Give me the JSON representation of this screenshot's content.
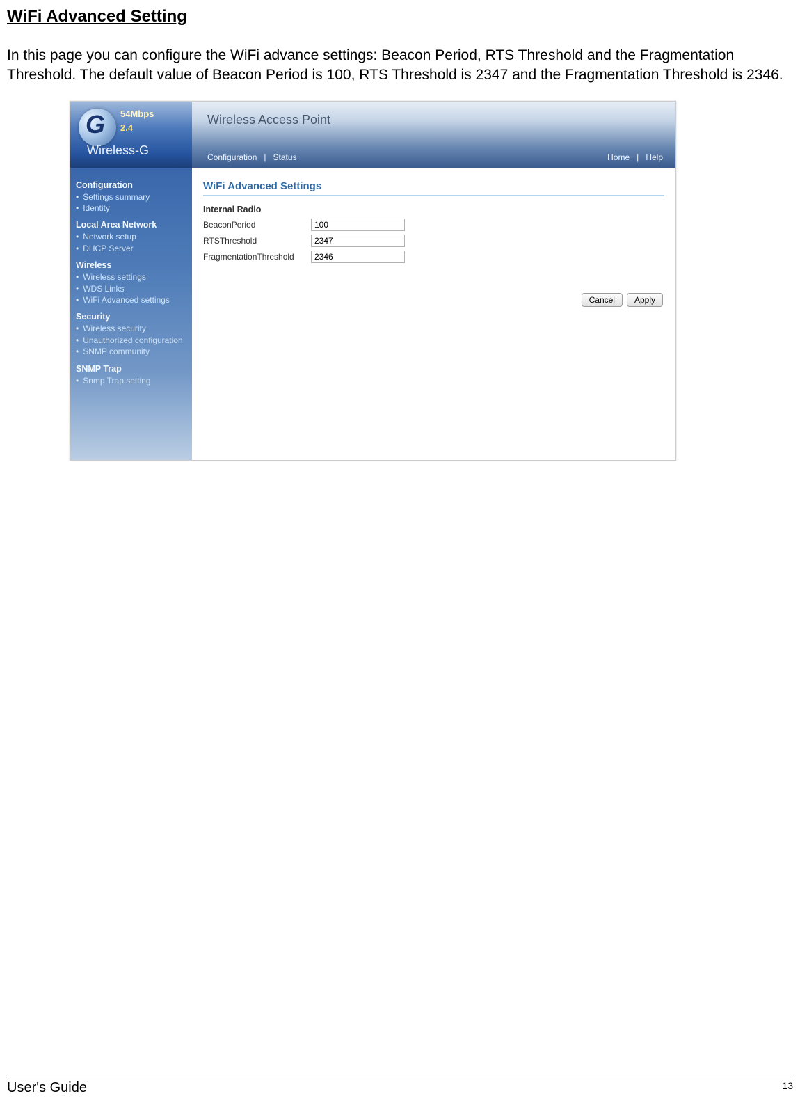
{
  "doc": {
    "section_title": "WiFi Advanced Setting",
    "intro": "In this page you can configure the WiFi advance settings: Beacon Period, RTS Threshold and the Fragmentation Threshold. The default value of Beacon Period is 100, RTS Threshold is 2347 and the Fragmentation Threshold is 2346.",
    "footer_left": "User's Guide",
    "footer_page": "13"
  },
  "logo": {
    "glyph": "G",
    "rate": "54Mbps",
    "band": "2.4",
    "name": "Wireless-G"
  },
  "banner": {
    "title": "Wireless Access Point",
    "nav_config": "Configuration",
    "nav_sep": "|",
    "nav_status": "Status",
    "nav_home": "Home",
    "nav_help": "Help"
  },
  "sidebar": {
    "groups": [
      {
        "title": "Configuration",
        "items": [
          "Settings summary",
          "Identity"
        ]
      },
      {
        "title": "Local Area Network",
        "items": [
          "Network setup",
          "DHCP Server"
        ]
      },
      {
        "title": "Wireless",
        "items": [
          "Wireless settings",
          "WDS Links",
          "WiFi Advanced settings"
        ]
      },
      {
        "title": "Security",
        "items": [
          "Wireless security",
          "Unauthorized configuration",
          "SNMP community"
        ]
      },
      {
        "title": "SNMP Trap",
        "items": [
          "Snmp Trap setting"
        ]
      }
    ]
  },
  "content": {
    "title": "WiFi Advanced Settings",
    "subhead": "Internal Radio",
    "fields": {
      "beacon_label": "BeaconPeriod",
      "beacon_value": "100",
      "rts_label": "RTSThreshold",
      "rts_value": "2347",
      "frag_label": "FragmentationThreshold",
      "frag_value": "2346"
    },
    "btn_cancel": "Cancel",
    "btn_apply": "Apply"
  },
  "colors": {
    "title_color": "#2e6aa6",
    "sidebar_top": "#3a67ab",
    "sidebar_bottom": "#bacde3"
  }
}
